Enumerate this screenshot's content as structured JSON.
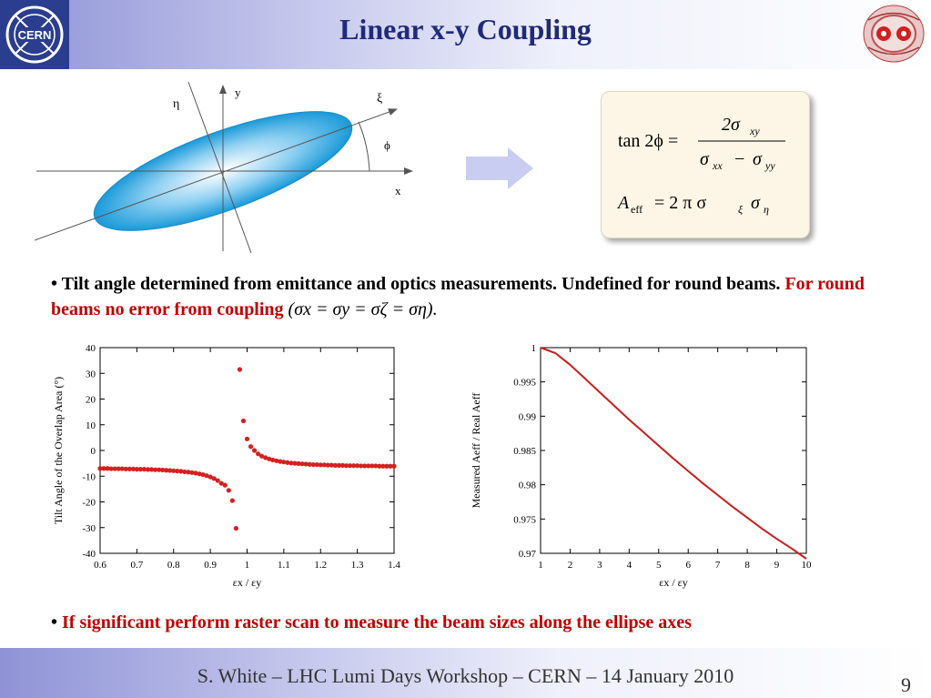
{
  "slide": {
    "title": "Linear x-y Coupling",
    "logo_left_text": "CERN",
    "footer": "S. White – LHC Lumi Days Workshop – CERN – 14 January 2010",
    "page_number": "9",
    "accent_color": "#1f2a7a",
    "red_color": "#c00000"
  },
  "diagram": {
    "axis_labels": {
      "y": "y",
      "eta": "η",
      "xi": "ξ",
      "phi": "ϕ",
      "x": "x"
    }
  },
  "formula": {
    "line1_lhs": "tan 2ϕ =",
    "line1_num": "2σ",
    "line1_num_sub": "xy",
    "line1_den_a": "σ",
    "line1_den_a_sub": "xx",
    "line1_den_op": "−",
    "line1_den_b": "σ",
    "line1_den_b_sub": "yy",
    "line2_A": "A",
    "line2_A_sub": "eff",
    "line2_rhs": "= 2  π  σ",
    "line2_sub_xi": "ξ",
    "line2_sigma2": "σ",
    "line2_sub_eta": "η"
  },
  "bullets": {
    "b1_prefix": "• ",
    "b1_black": "Tilt angle determined from emittance and optics measurements. Undefined for round beams. ",
    "b1_red": "For round beams no error from coupling",
    "b1_math": "(σx = σy = σζ = ση).",
    "b2_prefix": "• ",
    "b2_red": "If significant perform raster scan to measure the beam sizes along the ellipse axes"
  },
  "chart_data": [
    {
      "type": "scatter",
      "xlabel": "εx / εy",
      "ylabel": "Tilt Angle of the Overlap Area (°)",
      "xlim": [
        0.6,
        1.4
      ],
      "ylim": [
        -40,
        40
      ],
      "xticks": [
        "0.6",
        "0.7",
        "0.8",
        "0.9",
        "1",
        "1.1",
        "1.2",
        "1.3",
        "1.4"
      ],
      "yticks": [
        "40",
        "30",
        "20",
        "10",
        "0",
        "-10",
        "-20",
        "-30",
        "-40"
      ],
      "color": "#d62020",
      "points": [
        [
          0.6,
          -7.0
        ],
        [
          0.61,
          -7.0
        ],
        [
          0.62,
          -7.0
        ],
        [
          0.63,
          -7.1
        ],
        [
          0.64,
          -7.1
        ],
        [
          0.65,
          -7.1
        ],
        [
          0.66,
          -7.1
        ],
        [
          0.67,
          -7.2
        ],
        [
          0.68,
          -7.2
        ],
        [
          0.69,
          -7.2
        ],
        [
          0.7,
          -7.3
        ],
        [
          0.71,
          -7.3
        ],
        [
          0.72,
          -7.3
        ],
        [
          0.73,
          -7.4
        ],
        [
          0.74,
          -7.4
        ],
        [
          0.75,
          -7.5
        ],
        [
          0.76,
          -7.5
        ],
        [
          0.77,
          -7.6
        ],
        [
          0.78,
          -7.7
        ],
        [
          0.79,
          -7.8
        ],
        [
          0.8,
          -7.9
        ],
        [
          0.81,
          -8.0
        ],
        [
          0.82,
          -8.1
        ],
        [
          0.83,
          -8.3
        ],
        [
          0.84,
          -8.4
        ],
        [
          0.85,
          -8.6
        ],
        [
          0.86,
          -8.8
        ],
        [
          0.87,
          -9.1
        ],
        [
          0.88,
          -9.4
        ],
        [
          0.89,
          -9.8
        ],
        [
          0.9,
          -10.3
        ],
        [
          0.91,
          -10.9
        ],
        [
          0.92,
          -11.7
        ],
        [
          0.93,
          -12.8
        ],
        [
          0.94,
          -13.5
        ],
        [
          0.95,
          -15.5
        ],
        [
          0.96,
          -19.5
        ],
        [
          0.97,
          -30.3
        ],
        [
          0.98,
          31.5
        ],
        [
          0.99,
          11.5
        ],
        [
          1.0,
          4.5
        ],
        [
          1.01,
          1.5
        ],
        [
          1.02,
          0.0
        ],
        [
          1.03,
          -1.3
        ],
        [
          1.04,
          -2.2
        ],
        [
          1.05,
          -2.8
        ],
        [
          1.06,
          -3.3
        ],
        [
          1.07,
          -3.7
        ],
        [
          1.08,
          -4.0
        ],
        [
          1.09,
          -4.3
        ],
        [
          1.1,
          -4.5
        ],
        [
          1.11,
          -4.7
        ],
        [
          1.12,
          -4.9
        ],
        [
          1.13,
          -5.0
        ],
        [
          1.14,
          -5.1
        ],
        [
          1.15,
          -5.2
        ],
        [
          1.16,
          -5.3
        ],
        [
          1.17,
          -5.4
        ],
        [
          1.18,
          -5.5
        ],
        [
          1.19,
          -5.5
        ],
        [
          1.2,
          -5.6
        ],
        [
          1.21,
          -5.6
        ],
        [
          1.22,
          -5.7
        ],
        [
          1.23,
          -5.7
        ],
        [
          1.24,
          -5.8
        ],
        [
          1.25,
          -5.8
        ],
        [
          1.26,
          -5.8
        ],
        [
          1.27,
          -5.9
        ],
        [
          1.28,
          -5.9
        ],
        [
          1.29,
          -5.9
        ],
        [
          1.3,
          -5.9
        ],
        [
          1.31,
          -6.0
        ],
        [
          1.32,
          -6.0
        ],
        [
          1.33,
          -6.0
        ],
        [
          1.34,
          -6.0
        ],
        [
          1.35,
          -6.0
        ],
        [
          1.36,
          -6.1
        ],
        [
          1.37,
          -6.1
        ],
        [
          1.38,
          -6.1
        ],
        [
          1.39,
          -6.1
        ],
        [
          1.4,
          -6.1
        ]
      ]
    },
    {
      "type": "line",
      "xlabel": "εx / εy",
      "ylabel": "Measured Aeff / Real Aeff",
      "xlim": [
        1,
        10
      ],
      "ylim": [
        0.97,
        1
      ],
      "xticks": [
        "1",
        "2",
        "3",
        "4",
        "5",
        "6",
        "7",
        "8",
        "9",
        "10"
      ],
      "yticks": [
        "1",
        "0.995",
        "0.99",
        "0.985",
        "0.98",
        "0.975",
        "0.97"
      ],
      "color": "#c81e1e",
      "points": [
        [
          1,
          1.0
        ],
        [
          1.5,
          0.9992
        ],
        [
          2,
          0.9975
        ],
        [
          2.5,
          0.9955
        ],
        [
          3,
          0.9935
        ],
        [
          3.5,
          0.9915
        ],
        [
          4,
          0.9895
        ],
        [
          4.5,
          0.9876
        ],
        [
          5,
          0.9857
        ],
        [
          5.5,
          0.9838
        ],
        [
          6,
          0.982
        ],
        [
          6.5,
          0.9802
        ],
        [
          7,
          0.9785
        ],
        [
          7.5,
          0.9768
        ],
        [
          8,
          0.9752
        ],
        [
          8.5,
          0.9736
        ],
        [
          9,
          0.9721
        ],
        [
          9.5,
          0.9707
        ],
        [
          10,
          0.9692
        ]
      ]
    }
  ]
}
